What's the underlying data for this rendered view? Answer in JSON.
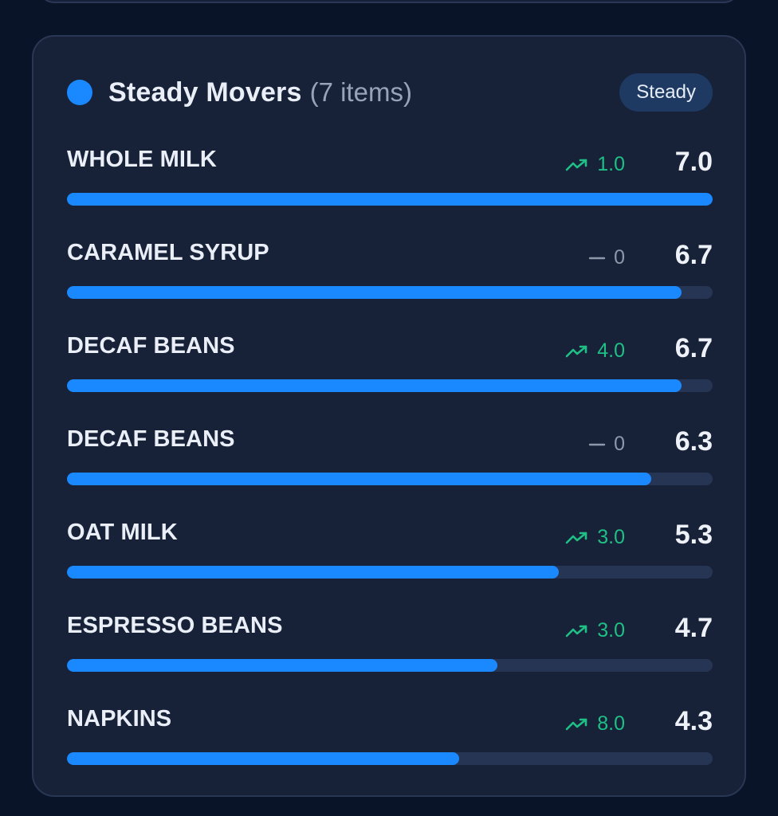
{
  "panel": {
    "title": "Steady Movers",
    "count_label": "(7 items)",
    "badge": "Steady",
    "accent": "#1a88ff",
    "up_color": "#1fbf86",
    "flat_color": "#8d98ab"
  },
  "items": [
    {
      "name": "WHOLE MILK",
      "trend": "up",
      "trend_icon": "trending-up-icon",
      "delta": "1.0",
      "value": "7.0",
      "fill_fraction": 1.0
    },
    {
      "name": "CARAMEL SYRUP",
      "trend": "flat",
      "trend_icon": "dash-icon",
      "delta": "0",
      "value": "6.7",
      "fill_fraction": 0.952
    },
    {
      "name": "DECAF BEANS",
      "trend": "up",
      "trend_icon": "trending-up-icon",
      "delta": "4.0",
      "value": "6.7",
      "fill_fraction": 0.952
    },
    {
      "name": "DECAF BEANS",
      "trend": "flat",
      "trend_icon": "dash-icon",
      "delta": "0",
      "value": "6.3",
      "fill_fraction": 0.905
    },
    {
      "name": "OAT MILK",
      "trend": "up",
      "trend_icon": "trending-up-icon",
      "delta": "3.0",
      "value": "5.3",
      "fill_fraction": 0.762
    },
    {
      "name": "ESPRESSO BEANS",
      "trend": "up",
      "trend_icon": "trending-up-icon",
      "delta": "3.0",
      "value": "4.7",
      "fill_fraction": 0.667
    },
    {
      "name": "NAPKINS",
      "trend": "up",
      "trend_icon": "trending-up-icon",
      "delta": "8.0",
      "value": "4.3",
      "fill_fraction": 0.607
    }
  ]
}
